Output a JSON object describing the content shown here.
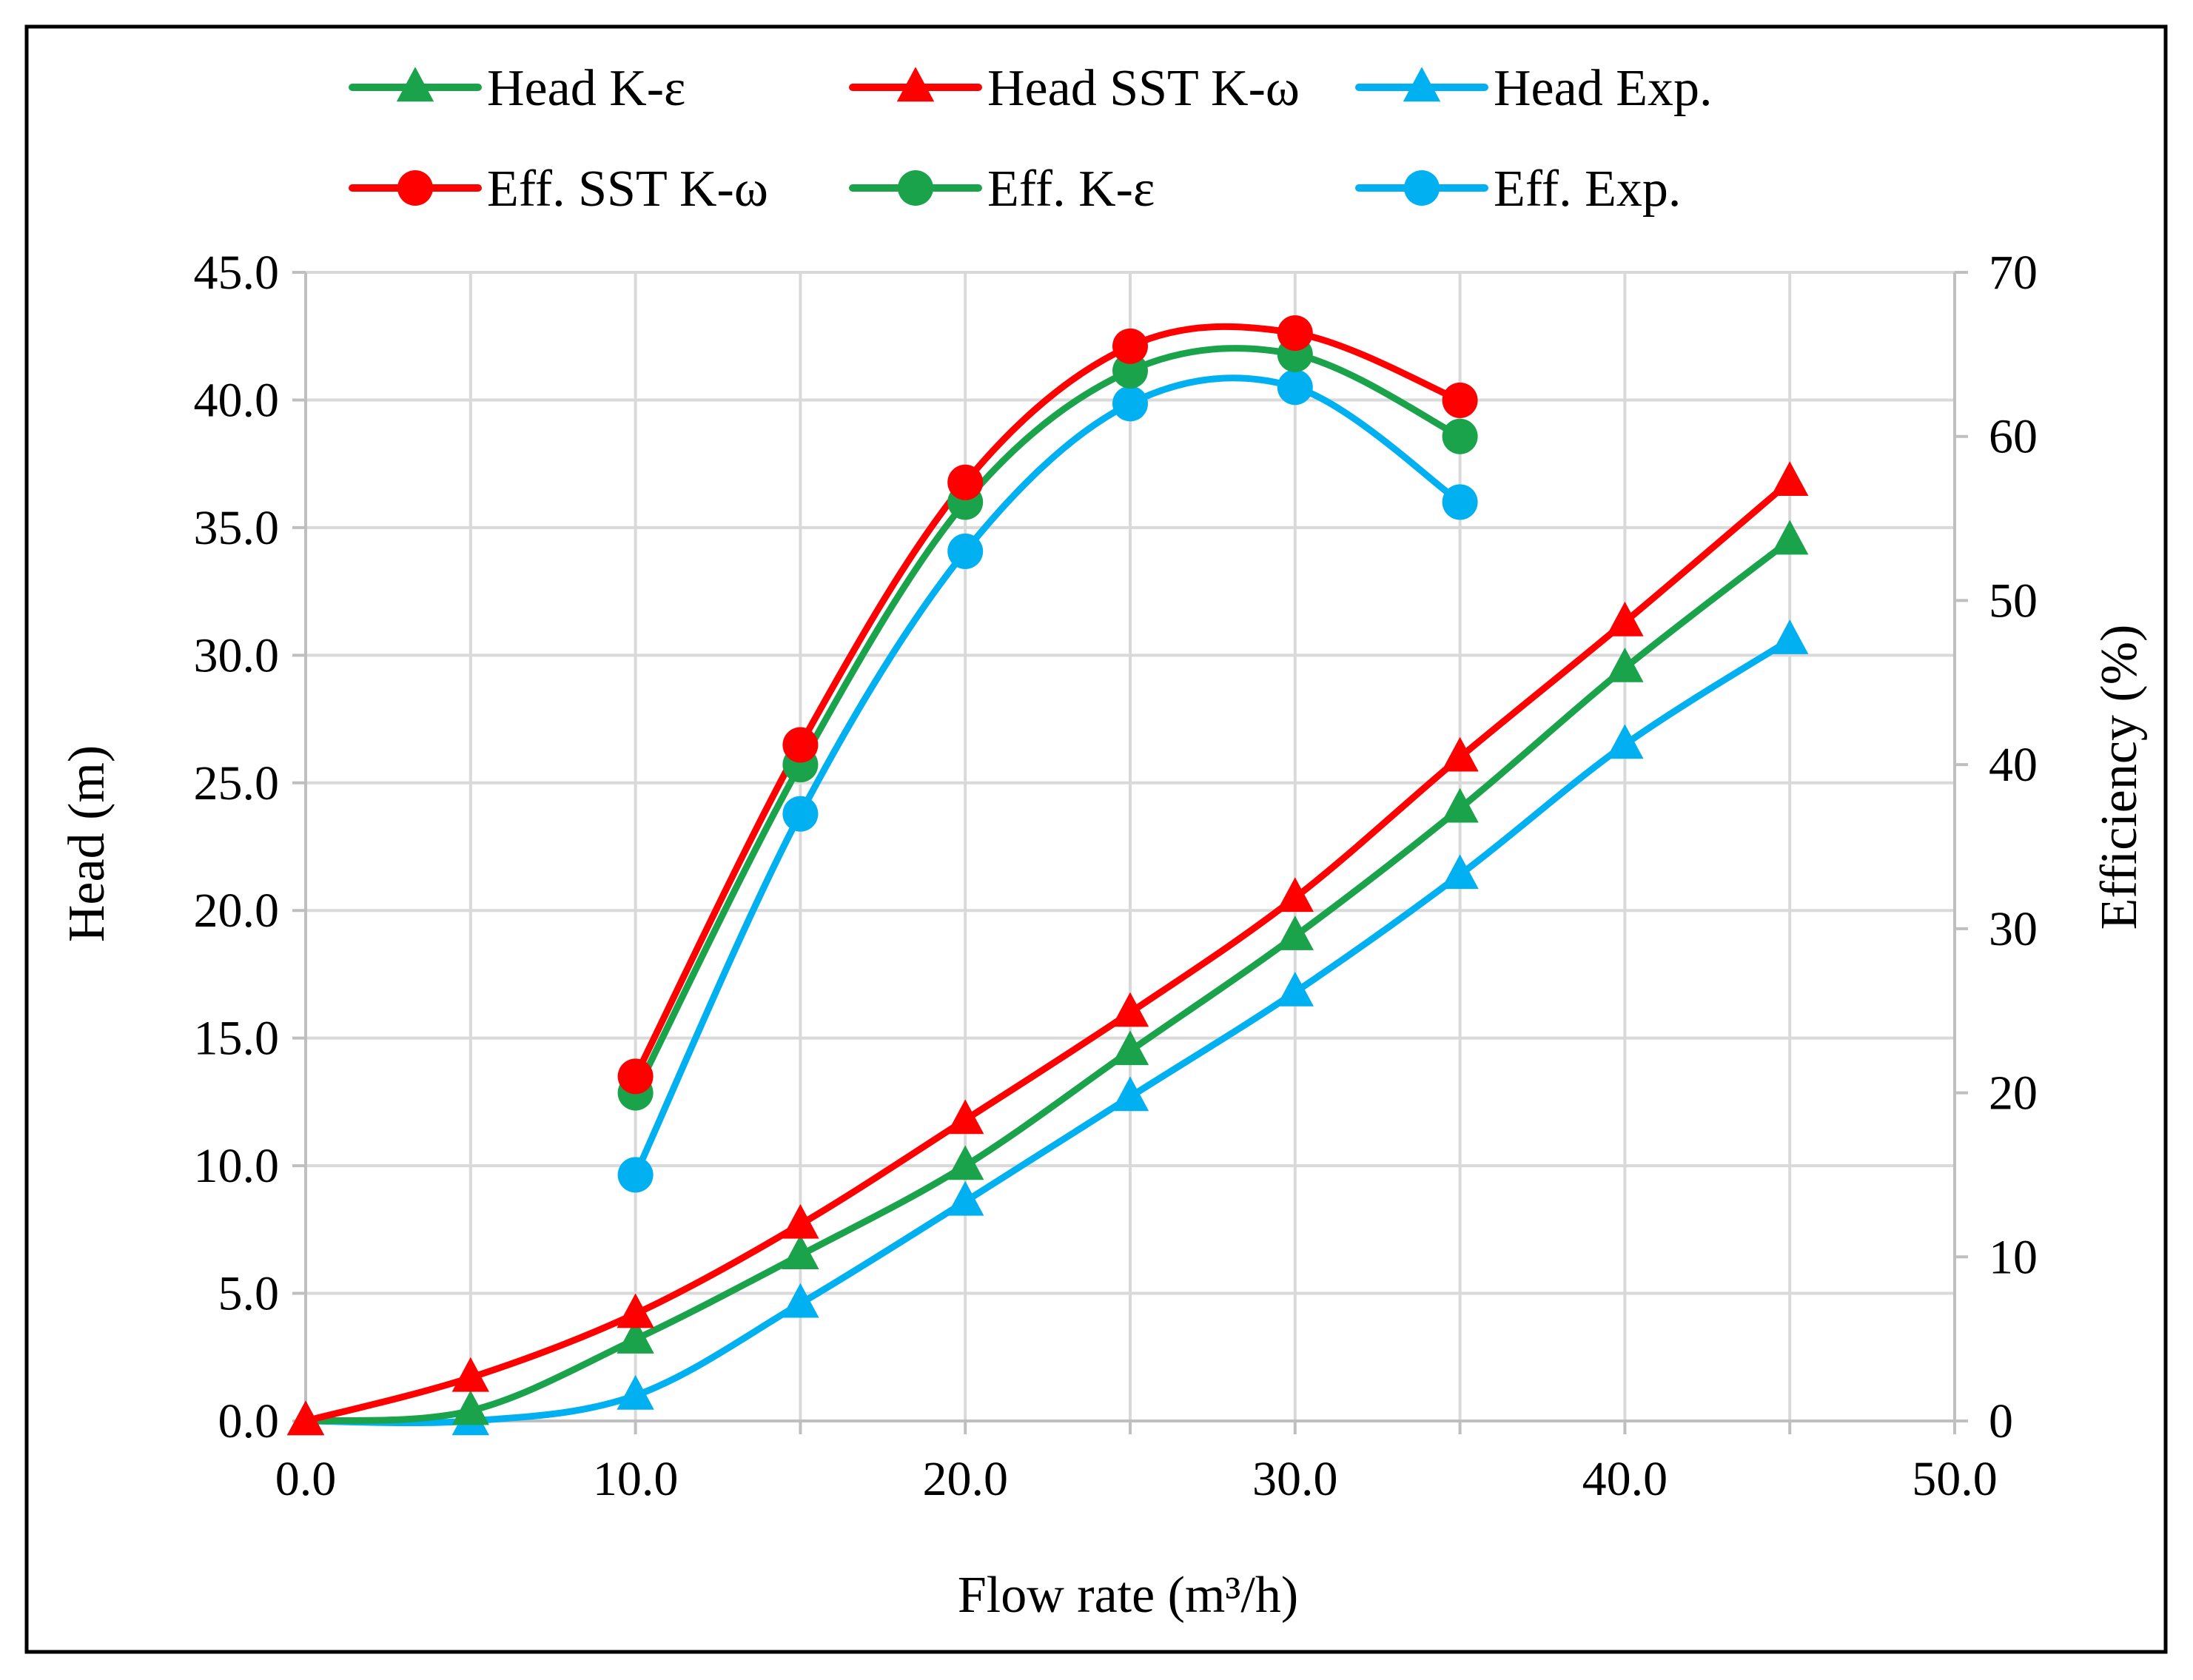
{
  "chart_data": {
    "type": "line",
    "title": "",
    "xlabel": "Flow rate (m³/h)",
    "ylabel_left": "Head (m)",
    "ylabel_right": "Efficiency (%)",
    "xlim": [
      0,
      50
    ],
    "ylim_left": [
      0,
      45
    ],
    "ylim_right": [
      0,
      70
    ],
    "x_ticks": [
      "0.0",
      "10.0",
      "20.0",
      "30.0",
      "40.0",
      "50.0"
    ],
    "y_left_ticks": [
      "0.0",
      "5.0",
      "10.0",
      "15.0",
      "20.0",
      "25.0",
      "30.0",
      "35.0",
      "40.0",
      "45.0"
    ],
    "y_right_ticks": [
      "0",
      "10",
      "20",
      "30",
      "40",
      "50",
      "60",
      "70"
    ],
    "grid": true,
    "legend_position": "top",
    "colors": {
      "green": "#1aa34a",
      "red": "#ff0000",
      "blue": "#00b0f0"
    },
    "series": [
      {
        "name": "Head K-ε",
        "axis": "left",
        "marker": "triangle",
        "color": "#1aa34a",
        "x": [
          0,
          5,
          10,
          15,
          20,
          25,
          30,
          35,
          40,
          45
        ],
        "values": [
          0,
          0.4,
          3.2,
          6.5,
          10.0,
          14.5,
          19.0,
          24.0,
          29.5,
          34.5
        ]
      },
      {
        "name": "Head SST K-ω",
        "axis": "left",
        "marker": "triangle",
        "color": "#ff0000",
        "x": [
          0,
          5,
          10,
          15,
          20,
          25,
          30,
          35,
          40,
          45
        ],
        "values": [
          0,
          1.7,
          4.2,
          7.7,
          11.8,
          16.0,
          20.5,
          26.0,
          31.3,
          36.8
        ]
      },
      {
        "name": "Head Exp.",
        "axis": "left",
        "marker": "triangle",
        "color": "#00b0f0",
        "x": [
          0,
          5,
          10,
          15,
          20,
          25,
          30,
          35,
          40,
          45
        ],
        "values": [
          0,
          0,
          1.0,
          4.6,
          8.6,
          12.7,
          16.8,
          21.4,
          26.5,
          30.6
        ]
      },
      {
        "name": "Eff. SST K-ω",
        "axis": "right",
        "marker": "circle",
        "color": "#ff0000",
        "x": [
          10,
          15,
          20,
          25,
          30,
          35
        ],
        "values": [
          21,
          41.2,
          57.2,
          65.5,
          66.3,
          62.2
        ]
      },
      {
        "name": "Eff. K-ε",
        "axis": "right",
        "marker": "circle",
        "color": "#1aa34a",
        "x": [
          10,
          15,
          20,
          25,
          30,
          35
        ],
        "values": [
          20,
          40,
          56,
          64,
          65,
          60
        ]
      },
      {
        "name": "Eff. Exp.",
        "axis": "right",
        "marker": "circle",
        "color": "#00b0f0",
        "x": [
          10,
          15,
          20,
          25,
          30,
          35
        ],
        "values": [
          15,
          37,
          53,
          62,
          63,
          56
        ]
      }
    ]
  }
}
